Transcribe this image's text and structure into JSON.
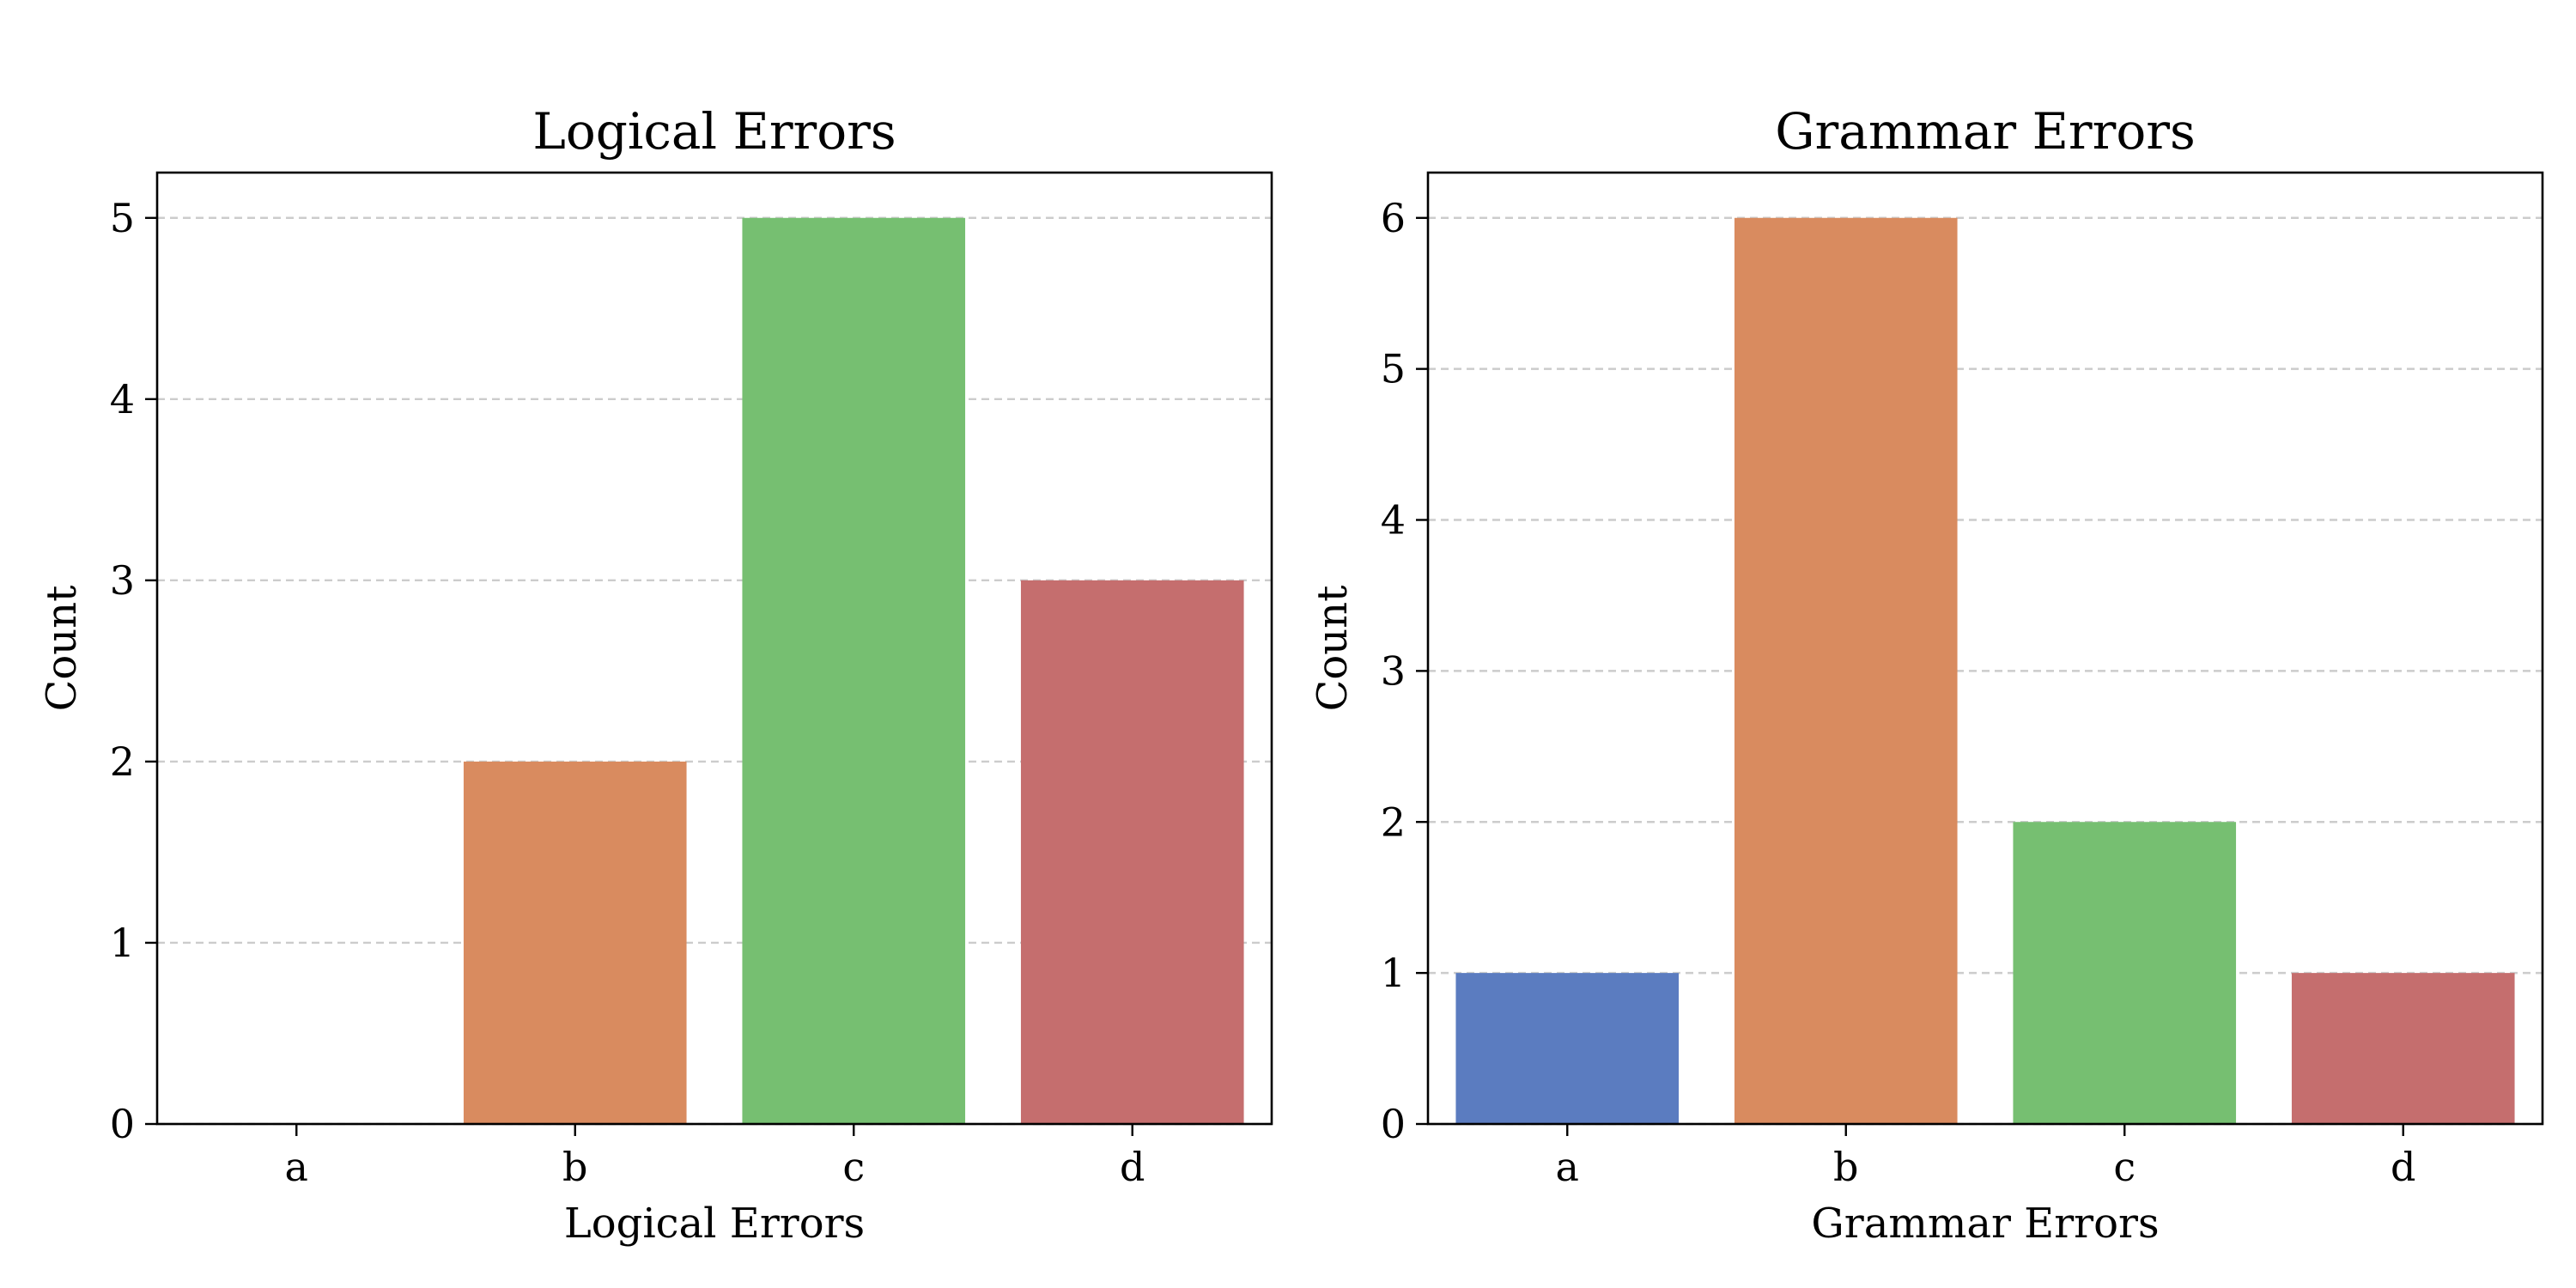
{
  "chart_data": [
    {
      "type": "bar",
      "title": "Logical Errors",
      "xlabel": "Logical Errors",
      "ylabel": "Count",
      "categories": [
        "a",
        "b",
        "c",
        "d"
      ],
      "values": [
        0,
        2,
        5,
        3
      ],
      "ylim": [
        0,
        5.25
      ],
      "yticks": [
        0,
        1,
        2,
        3,
        4,
        5
      ],
      "grid": "y-dashed",
      "colors": [
        "#5b7cc0",
        "#d98b5f",
        "#76bf71",
        "#c56e6e"
      ]
    },
    {
      "type": "bar",
      "title": "Grammar Errors",
      "xlabel": "Grammar Errors",
      "ylabel": "Count",
      "categories": [
        "a",
        "b",
        "c",
        "d"
      ],
      "values": [
        1,
        6,
        2,
        1
      ],
      "ylim": [
        0,
        6.3
      ],
      "yticks": [
        0,
        1,
        2,
        3,
        4,
        5,
        6
      ],
      "grid": "y-dashed",
      "colors": [
        "#5b7cc0",
        "#d98b5f",
        "#76bf71",
        "#c56e6e"
      ]
    }
  ]
}
